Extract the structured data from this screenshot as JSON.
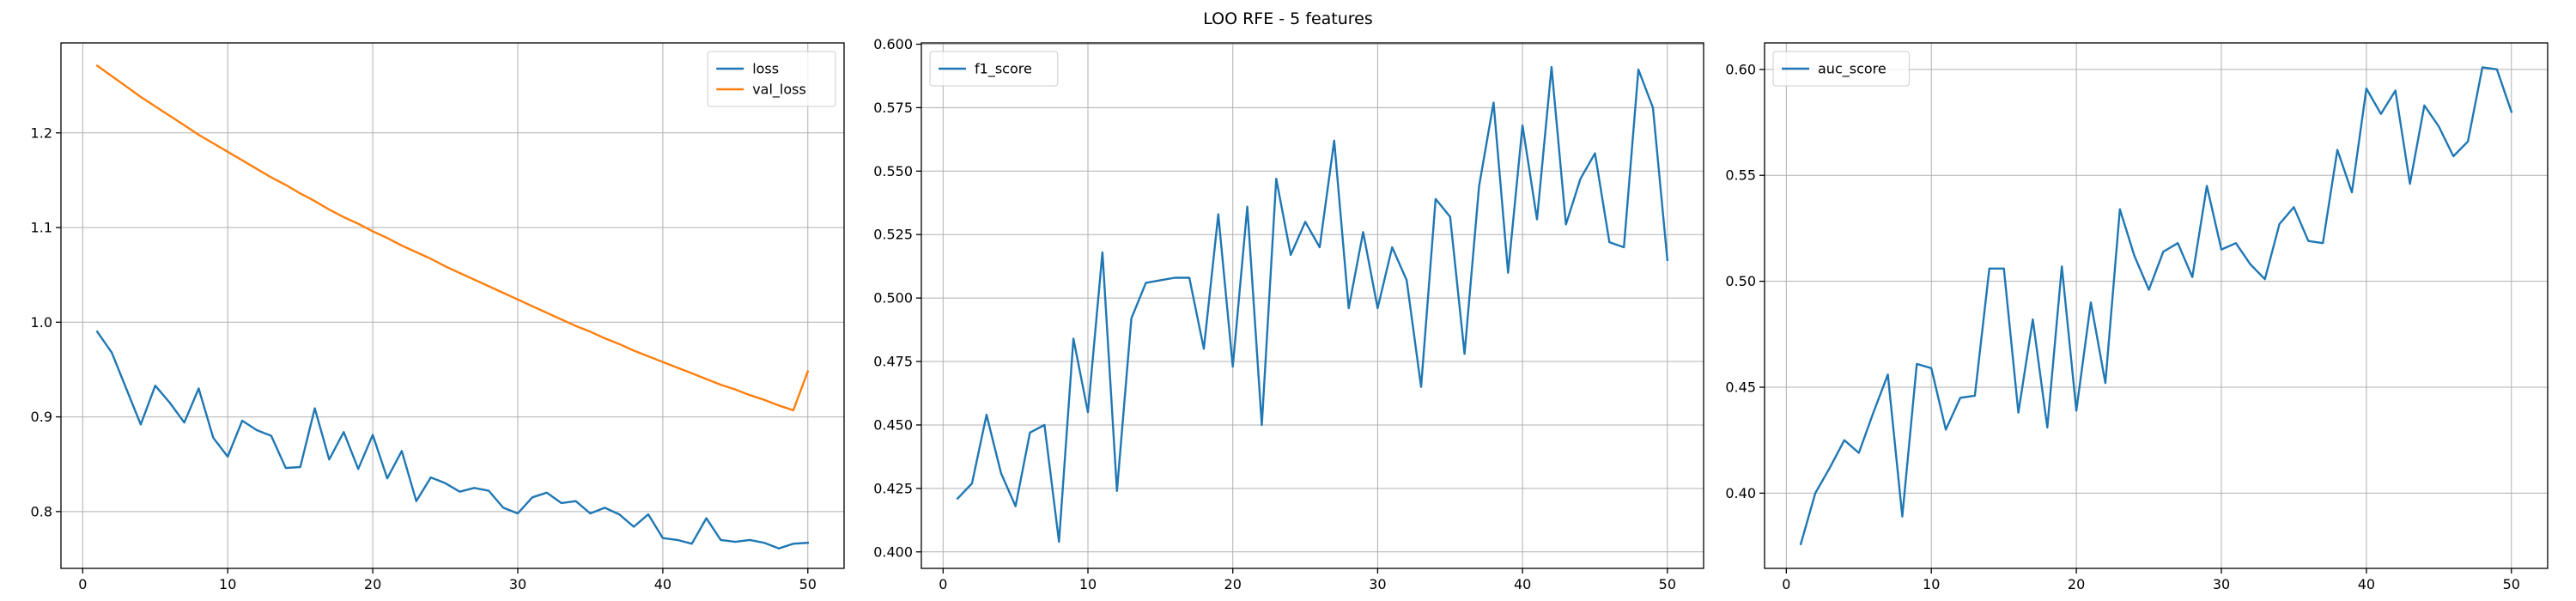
{
  "figure": {
    "suptitle": "LOO RFE - 5 features"
  },
  "chart_data": [
    {
      "type": "line",
      "title": "",
      "xlabel": "",
      "ylabel": "",
      "grid": true,
      "legend_position": "top-right",
      "xlim": [
        -1.5,
        52.5
      ],
      "ylim": [
        0.74,
        1.295
      ],
      "xticks": [
        0,
        10,
        20,
        30,
        40,
        50
      ],
      "yticks": [
        0.8,
        0.9,
        1.0,
        1.1,
        1.2
      ],
      "ytick_labels": [
        "0.8",
        "0.9",
        "1.0",
        "1.1",
        "1.2"
      ],
      "x": [
        1,
        2,
        3,
        4,
        5,
        6,
        7,
        8,
        9,
        10,
        11,
        12,
        13,
        14,
        15,
        16,
        17,
        18,
        19,
        20,
        21,
        22,
        23,
        24,
        25,
        26,
        27,
        28,
        29,
        30,
        31,
        32,
        33,
        34,
        35,
        36,
        37,
        38,
        39,
        40,
        41,
        42,
        43,
        44,
        45,
        46,
        47,
        48,
        49,
        50
      ],
      "series": [
        {
          "name": "loss",
          "color": "#1f77b4",
          "values": [
            0.99,
            0.968,
            0.93,
            0.892,
            0.933,
            0.915,
            0.894,
            0.93,
            0.878,
            0.858,
            0.896,
            0.886,
            0.88,
            0.846,
            0.847,
            0.909,
            0.855,
            0.884,
            0.845,
            0.881,
            0.835,
            0.864,
            0.811,
            0.836,
            0.83,
            0.821,
            0.825,
            0.822,
            0.804,
            0.798,
            0.815,
            0.82,
            0.809,
            0.811,
            0.798,
            0.804,
            0.797,
            0.784,
            0.797,
            0.772,
            0.77,
            0.766,
            0.793,
            0.77,
            0.768,
            0.77,
            0.767,
            0.761,
            0.766,
            0.767
          ]
        },
        {
          "name": "val_loss",
          "color": "#ff7f0e",
          "values": [
            1.271,
            1.26,
            1.249,
            1.238,
            1.228,
            1.218,
            1.208,
            1.198,
            1.189,
            1.18,
            1.171,
            1.162,
            1.153,
            1.145,
            1.136,
            1.128,
            1.119,
            1.111,
            1.104,
            1.096,
            1.089,
            1.081,
            1.074,
            1.067,
            1.059,
            1.052,
            1.045,
            1.038,
            1.031,
            1.024,
            1.017,
            1.01,
            1.003,
            0.996,
            0.99,
            0.983,
            0.977,
            0.97,
            0.964,
            0.958,
            0.952,
            0.946,
            0.94,
            0.934,
            0.929,
            0.923,
            0.918,
            0.912,
            0.907,
            0.948
          ]
        }
      ]
    },
    {
      "type": "line",
      "title": "",
      "xlabel": "",
      "ylabel": "",
      "grid": true,
      "legend_position": "top-left",
      "xlim": [
        -1.5,
        52.5
      ],
      "ylim": [
        0.3935,
        0.6005
      ],
      "xticks": [
        0,
        10,
        20,
        30,
        40,
        50
      ],
      "yticks": [
        0.4,
        0.425,
        0.45,
        0.475,
        0.5,
        0.525,
        0.55,
        0.575,
        0.6
      ],
      "ytick_labels": [
        "0.400",
        "0.425",
        "0.450",
        "0.475",
        "0.500",
        "0.525",
        "0.550",
        "0.575",
        "0.600"
      ],
      "x": [
        1,
        2,
        3,
        4,
        5,
        6,
        7,
        8,
        9,
        10,
        11,
        12,
        13,
        14,
        15,
        16,
        17,
        18,
        19,
        20,
        21,
        22,
        23,
        24,
        25,
        26,
        27,
        28,
        29,
        30,
        31,
        32,
        33,
        34,
        35,
        36,
        37,
        38,
        39,
        40,
        41,
        42,
        43,
        44,
        45,
        46,
        47,
        48,
        49,
        50
      ],
      "series": [
        {
          "name": "f1_score",
          "color": "#1f77b4",
          "values": [
            0.421,
            0.427,
            0.454,
            0.431,
            0.418,
            0.447,
            0.45,
            0.404,
            0.484,
            0.455,
            0.518,
            0.424,
            0.492,
            0.506,
            0.507,
            0.508,
            0.508,
            0.48,
            0.533,
            0.473,
            0.536,
            0.45,
            0.547,
            0.517,
            0.53,
            0.52,
            0.562,
            0.496,
            0.526,
            0.496,
            0.52,
            0.507,
            0.465,
            0.539,
            0.532,
            0.478,
            0.544,
            0.577,
            0.51,
            0.568,
            0.531,
            0.591,
            0.529,
            0.547,
            0.557,
            0.522,
            0.52,
            0.59,
            0.575,
            0.515
          ]
        }
      ]
    },
    {
      "type": "line",
      "title": "",
      "xlabel": "",
      "ylabel": "",
      "grid": true,
      "legend_position": "top-left",
      "xlim": [
        -1.5,
        52.5
      ],
      "ylim": [
        0.3645,
        0.6125
      ],
      "xticks": [
        0,
        10,
        20,
        30,
        40,
        50
      ],
      "yticks": [
        0.4,
        0.45,
        0.5,
        0.55,
        0.6
      ],
      "ytick_labels": [
        "0.40",
        "0.45",
        "0.50",
        "0.55",
        "0.60"
      ],
      "x": [
        1,
        2,
        3,
        4,
        5,
        6,
        7,
        8,
        9,
        10,
        11,
        12,
        13,
        14,
        15,
        16,
        17,
        18,
        19,
        20,
        21,
        22,
        23,
        24,
        25,
        26,
        27,
        28,
        29,
        30,
        31,
        32,
        33,
        34,
        35,
        36,
        37,
        38,
        39,
        40,
        41,
        42,
        43,
        44,
        45,
        46,
        47,
        48,
        49,
        50
      ],
      "series": [
        {
          "name": "auc_score",
          "color": "#1f77b4",
          "values": [
            0.376,
            0.4,
            0.412,
            0.425,
            0.419,
            0.438,
            0.456,
            0.389,
            0.461,
            0.459,
            0.43,
            0.445,
            0.446,
            0.506,
            0.506,
            0.438,
            0.482,
            0.431,
            0.507,
            0.439,
            0.49,
            0.452,
            0.534,
            0.512,
            0.496,
            0.514,
            0.518,
            0.502,
            0.545,
            0.515,
            0.518,
            0.508,
            0.501,
            0.527,
            0.535,
            0.519,
            0.518,
            0.562,
            0.542,
            0.591,
            0.579,
            0.59,
            0.546,
            0.583,
            0.573,
            0.559,
            0.566,
            0.601,
            0.6,
            0.58
          ]
        }
      ]
    }
  ]
}
